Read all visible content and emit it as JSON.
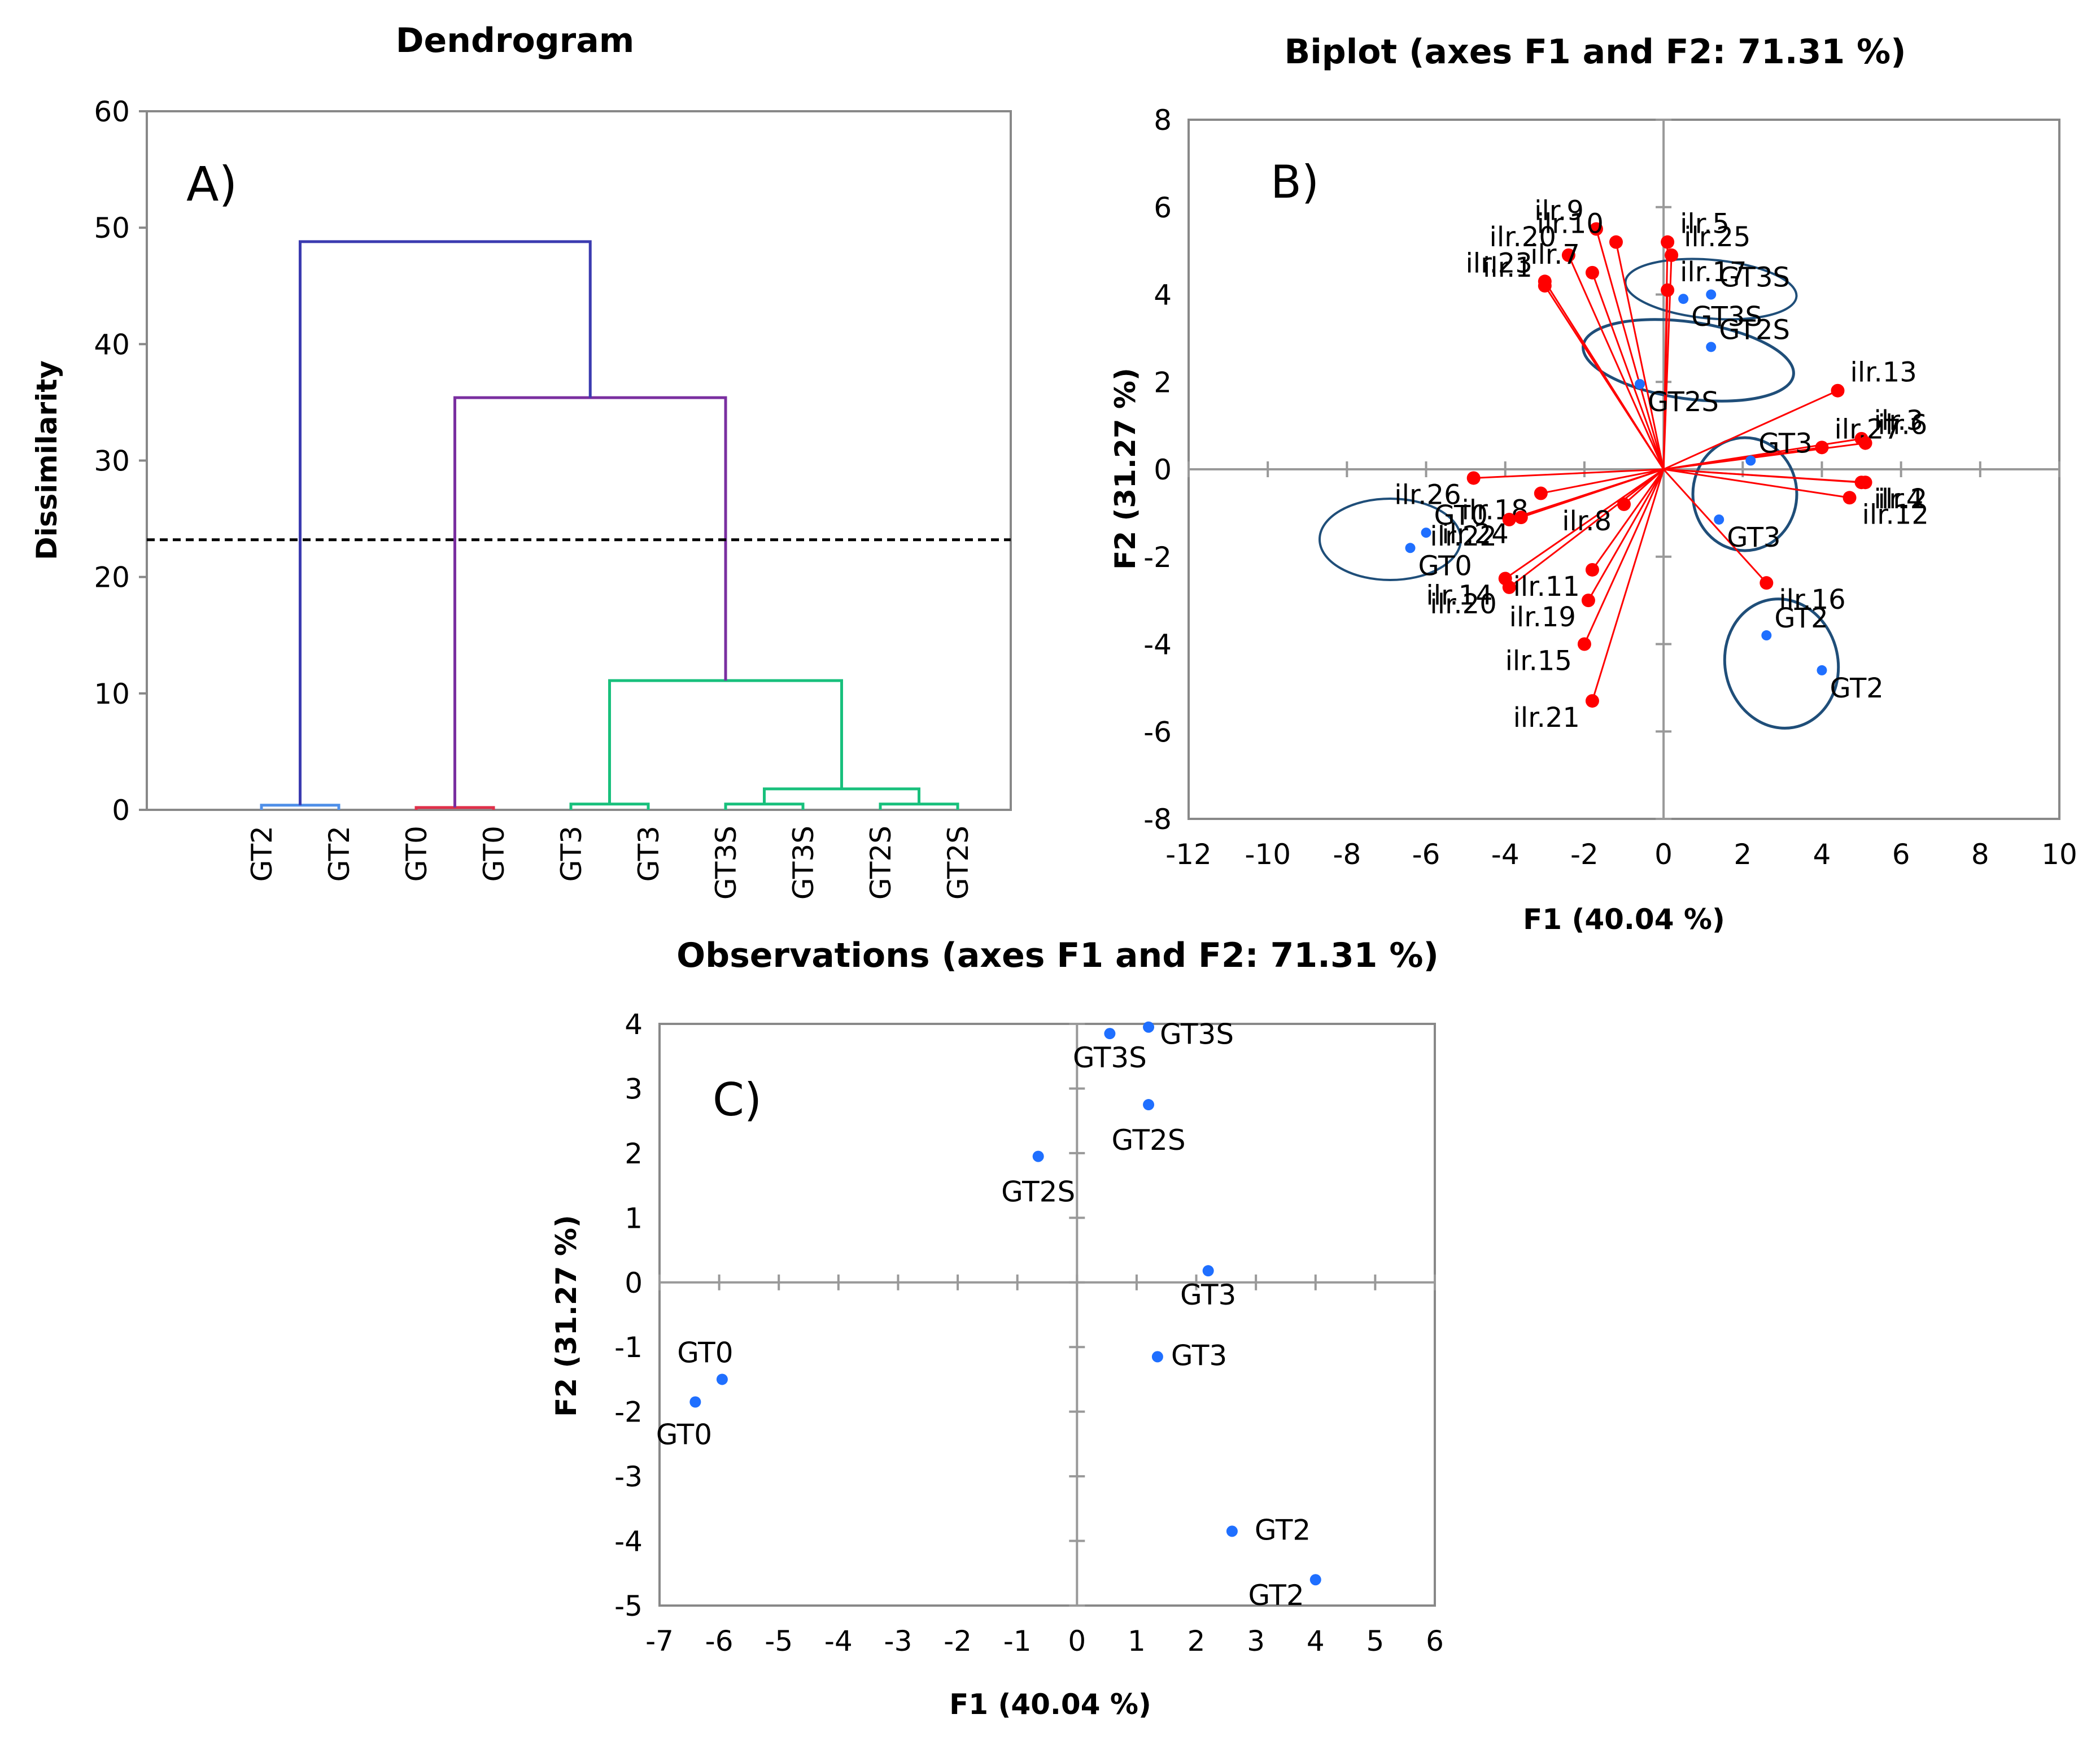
{
  "colors": {
    "vector": "#ff0000",
    "observation": "#1f6fff",
    "ellipse": "#1f4e79",
    "cutline": "#000000",
    "branch_top": "#3b3bb0",
    "branch_gt2": "#4f8fe8",
    "branch_gt0": "#7a2fa0",
    "branch_gt0_leaf": "#e0304a",
    "branch_cluster": "#18c07c"
  },
  "chart_data": [
    {
      "id": "A",
      "type": "dendrogram",
      "panel_label": "A)",
      "title": "Dendrogram",
      "ylabel": "Dissimilarity",
      "ylim": [
        0,
        60
      ],
      "yticks": [
        0,
        10,
        20,
        30,
        40,
        50,
        60
      ],
      "cut_level": 23.2,
      "leaves": [
        "GT2",
        "GT2",
        "GT0",
        "GT0",
        "GT3",
        "GT3",
        "GT3S",
        "GT3S",
        "GT2S",
        "GT2S"
      ],
      "merges": [
        {
          "left": 0,
          "right": 1,
          "height": 0.4,
          "color_key": "branch_gt2"
        },
        {
          "left": 2,
          "right": 3,
          "height": 0.2,
          "color_key": "branch_gt0_leaf"
        },
        {
          "left": 4,
          "right": 5,
          "height": 0.5,
          "color_key": "branch_cluster"
        },
        {
          "left": 6,
          "right": 7,
          "height": 0.5,
          "color_key": "branch_cluster"
        },
        {
          "left": 8,
          "right": 9,
          "height": 0.5,
          "color_key": "branch_cluster"
        },
        {
          "left": 13,
          "right": 14,
          "height": 1.8,
          "color_key": "branch_cluster"
        },
        {
          "left": 12,
          "right": 15,
          "height": 11.1,
          "color_key": "branch_cluster"
        },
        {
          "left": 11,
          "right": 16,
          "height": 35.4,
          "color_key": "branch_gt0"
        },
        {
          "left": 10,
          "right": 17,
          "height": 48.8,
          "color_key": "branch_top"
        }
      ]
    },
    {
      "id": "B",
      "type": "biplot",
      "panel_label": "B)",
      "title": "Biplot (axes F1 and F2: 71.31 %)",
      "xlabel": "F1 (40.04 %)",
      "ylabel": "F2 (31.27 %)",
      "xlim": [
        -12,
        10
      ],
      "ylim": [
        -8,
        8
      ],
      "xticks": [
        -12,
        -10,
        -8,
        -6,
        -4,
        -2,
        0,
        2,
        4,
        6,
        8,
        10
      ],
      "yticks": [
        -8,
        -6,
        -4,
        -2,
        0,
        2,
        4,
        6,
        8
      ],
      "variables": [
        {
          "label": "ilr.9",
          "x": -1.7,
          "y": 5.5
        },
        {
          "label": "ilr.10",
          "x": -1.2,
          "y": 5.2
        },
        {
          "label": "ilr.20",
          "x": -2.4,
          "y": 4.9
        },
        {
          "label": "ilr.7",
          "x": -1.8,
          "y": 4.5
        },
        {
          "label": "ilr.23",
          "x": -3.0,
          "y": 4.3
        },
        {
          "label": "ilr.1",
          "x": -3.0,
          "y": 4.2
        },
        {
          "label": "ilr.5",
          "x": 0.1,
          "y": 5.2
        },
        {
          "label": "ilr.25",
          "x": 0.2,
          "y": 4.9
        },
        {
          "label": "ilr.17",
          "x": 0.1,
          "y": 4.1
        },
        {
          "label": "ilr.13",
          "x": 4.4,
          "y": 1.8
        },
        {
          "label": "ilr.3",
          "x": 5.0,
          "y": 0.7
        },
        {
          "label": "ilr.27",
          "x": 4.0,
          "y": 0.5
        },
        {
          "label": "ilr.6",
          "x": 5.1,
          "y": 0.6
        },
        {
          "label": "ilr.4",
          "x": 5.0,
          "y": -0.3
        },
        {
          "label": "ilr.2",
          "x": 5.1,
          "y": -0.3
        },
        {
          "label": "ilr.12",
          "x": 4.7,
          "y": -0.65
        },
        {
          "label": "ilr.16",
          "x": 2.6,
          "y": -2.6
        },
        {
          "label": "ilr.26",
          "x": -4.8,
          "y": -0.2
        },
        {
          "label": "ilr.18",
          "x": -3.1,
          "y": -0.55
        },
        {
          "label": "ilr.24",
          "x": -3.6,
          "y": -1.1
        },
        {
          "label": "ilr.22",
          "x": -3.9,
          "y": -1.15
        },
        {
          "label": "ilr.8",
          "x": -1.0,
          "y": -0.8
        },
        {
          "label": "ilr.14",
          "x": -4.0,
          "y": -2.5
        },
        {
          "label": "ilr.20",
          "x": -3.9,
          "y": -2.7
        },
        {
          "label": "ilr.11",
          "x": -1.8,
          "y": -2.3
        },
        {
          "label": "ilr.19",
          "x": -1.9,
          "y": -3.0
        },
        {
          "label": "ilr.15",
          "x": -2.0,
          "y": -4.0
        },
        {
          "label": "ilr.21",
          "x": -1.8,
          "y": -5.3
        }
      ],
      "observations": [
        {
          "label": "GT3S",
          "x": 1.2,
          "y": 4.0
        },
        {
          "label": "GT3S",
          "x": 0.5,
          "y": 3.9
        },
        {
          "label": "GT2S",
          "x": 1.2,
          "y": 2.8
        },
        {
          "label": "GT2S",
          "x": -0.6,
          "y": 1.95
        },
        {
          "label": "GT3",
          "x": 2.2,
          "y": 0.2
        },
        {
          "label": "GT3",
          "x": 1.4,
          "y": -1.15
        },
        {
          "label": "GT0",
          "x": -6.0,
          "y": -1.45
        },
        {
          "label": "GT0",
          "x": -6.4,
          "y": -1.8
        },
        {
          "label": "GT2",
          "x": 2.6,
          "y": -3.8
        },
        {
          "label": "GT2",
          "x": 4.0,
          "y": -4.6
        }
      ]
    },
    {
      "id": "C",
      "type": "scatter",
      "panel_label": "C)",
      "title": "Observations (axes F1 and F2: 71.31 %)",
      "xlabel": "F1 (40.04 %)",
      "ylabel": "F2 (31.27 %)",
      "xlim": [
        -7,
        6
      ],
      "ylim": [
        -5,
        4
      ],
      "xticks": [
        -7,
        -6,
        -5,
        -4,
        -3,
        -2,
        -1,
        0,
        1,
        2,
        3,
        4,
        5,
        6
      ],
      "yticks": [
        -5,
        -4,
        -3,
        -2,
        -1,
        0,
        1,
        2,
        3,
        4
      ],
      "points": [
        {
          "label": "GT3S",
          "x": 0.55,
          "y": 3.85
        },
        {
          "label": "GT3S",
          "x": 1.2,
          "y": 3.95
        },
        {
          "label": "GT2S",
          "x": 1.2,
          "y": 2.75
        },
        {
          "label": "GT2S",
          "x": -0.65,
          "y": 1.95
        },
        {
          "label": "GT3",
          "x": 2.2,
          "y": 0.18
        },
        {
          "label": "GT3",
          "x": 1.35,
          "y": -1.15
        },
        {
          "label": "GT0",
          "x": -5.95,
          "y": -1.5
        },
        {
          "label": "GT0",
          "x": -6.4,
          "y": -1.85
        },
        {
          "label": "GT2",
          "x": 2.6,
          "y": -3.85
        },
        {
          "label": "GT2",
          "x": 4.0,
          "y": -4.6
        }
      ]
    }
  ]
}
